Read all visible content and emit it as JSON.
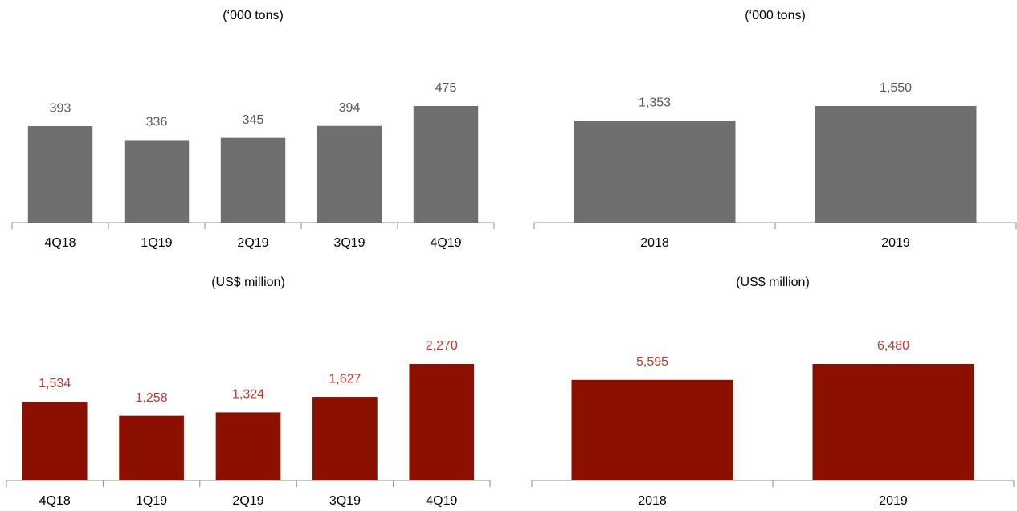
{
  "chart_data": [
    {
      "type": "bar",
      "subtitle": "(‘000 tons)",
      "categories": [
        "4Q18",
        "1Q19",
        "2Q19",
        "3Q19",
        "4Q19"
      ],
      "values": [
        393,
        336,
        345,
        394,
        475
      ],
      "value_labels": [
        "393",
        "336",
        "345",
        "394",
        "475"
      ],
      "color": "#6f6f6f",
      "label_color": "#595959"
    },
    {
      "type": "bar",
      "subtitle": "(‘000 tons)",
      "categories": [
        "2018",
        "2019"
      ],
      "values": [
        1353,
        1550
      ],
      "value_labels": [
        "1,353",
        "1,550"
      ],
      "color": "#6f6f6f",
      "label_color": "#595959"
    },
    {
      "type": "bar",
      "subtitle": "(US$ million)",
      "categories": [
        "4Q18",
        "1Q19",
        "2Q19",
        "3Q19",
        "4Q19"
      ],
      "values": [
        1534,
        1258,
        1324,
        1627,
        2270
      ],
      "value_labels": [
        "1,534",
        "1,258",
        "1,324",
        "1,627",
        "2,270"
      ],
      "color": "#8b1000",
      "label_color": "#c0392b"
    },
    {
      "type": "bar",
      "subtitle": "(US$ million)",
      "categories": [
        "2018",
        "2019"
      ],
      "values": [
        5595,
        6480
      ],
      "value_labels": [
        "5,595",
        "6,480"
      ],
      "color": "#8b1000",
      "label_color": "#c0392b"
    }
  ]
}
